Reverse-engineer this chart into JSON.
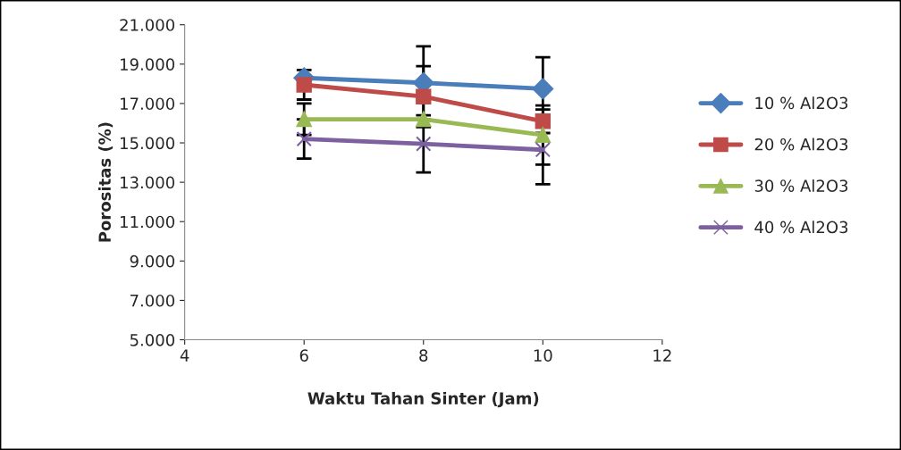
{
  "chart_data": {
    "type": "line",
    "xlabel": "Waktu Tahan Sinter (Jam)",
    "ylabel": "Porositas (%)",
    "x": [
      6,
      8,
      10
    ],
    "series": [
      {
        "name": "10 % Al2O3",
        "color": "#4a7ebb",
        "marker": "diamond",
        "values": [
          18.3,
          18.05,
          17.75
        ],
        "errors": [
          null,
          1.85,
          1.6
        ]
      },
      {
        "name": "20 % Al2O3",
        "color": "#be4b48",
        "marker": "square",
        "values": [
          17.95,
          17.35,
          16.1
        ],
        "errors": [
          0.75,
          1.55,
          0.6
        ]
      },
      {
        "name": "30 % Al2O3",
        "color": "#98b954",
        "marker": "triangle",
        "values": [
          16.2,
          16.2,
          15.4
        ],
        "errors": [
          0.8,
          null,
          1.5
        ]
      },
      {
        "name": "40 % Al2O3",
        "color": "#7d60a0",
        "marker": "cross",
        "values": [
          15.2,
          14.95,
          14.65
        ],
        "errors": [
          1.0,
          1.45,
          1.75
        ]
      }
    ],
    "xlim": [
      4,
      12
    ],
    "xticks": [
      4,
      6,
      8,
      10,
      12
    ],
    "ylim": [
      5,
      21
    ],
    "yticks": [
      {
        "value": 5,
        "label": "5.000"
      },
      {
        "value": 7,
        "label": "7.000"
      },
      {
        "value": 9,
        "label": "9.000"
      },
      {
        "value": 11,
        "label": "11.000"
      },
      {
        "value": 13,
        "label": "13.000"
      },
      {
        "value": 15,
        "label": "15.000"
      },
      {
        "value": 17,
        "label": "17.000"
      },
      {
        "value": 19,
        "label": "19.000"
      },
      {
        "value": 21,
        "label": "21.000"
      }
    ],
    "grid": false,
    "legend": "right"
  }
}
